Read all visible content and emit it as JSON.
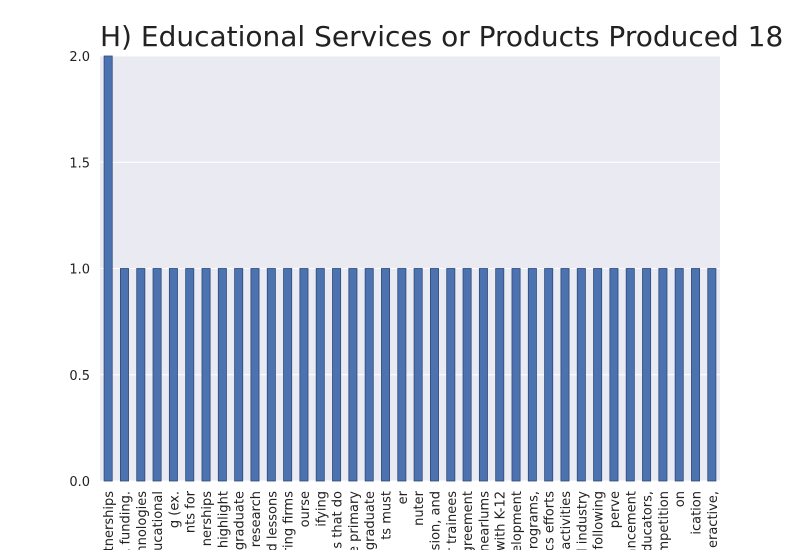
{
  "chart_data": {
    "type": "bar",
    "title": "H) Educational Services or Products Produced 18",
    "xlabel": "",
    "ylabel": "",
    "ylim": [
      0,
      2.0
    ],
    "yticks": [
      "0.0",
      "0.5",
      "1.0",
      "1.5",
      "2.0"
    ],
    "grid": true,
    "colors": {
      "bar": "#4c72b0",
      "bar_edge": "#2d4a7a",
      "background": "#eaeaf2",
      "grid": "#ffffff"
    },
    "categories": [
      "partnerships",
      "R funding.",
      "hnologies",
      "ducational",
      "g (ex.",
      "nts for",
      "nerships",
      "d highlight",
      "graduate",
      "research",
      "d lessons",
      "ring firms",
      "ourse",
      "ifying",
      "s that do",
      "e primary",
      "graduate",
      "ts must",
      "er",
      "nuter",
      "ision, and",
      "r trainees",
      "greement",
      "nearlums",
      "with K-12",
      "elopment",
      "programs,",
      "cs efforts",
      "d activities",
      "d industry",
      "following",
      "perve",
      "ancement",
      "educators,",
      "ompetition",
      "on",
      "ication",
      "eractive,"
    ],
    "values": [
      2,
      1,
      1,
      1,
      1,
      1,
      1,
      1,
      1,
      1,
      1,
      1,
      1,
      1,
      1,
      1,
      1,
      1,
      1,
      1,
      1,
      1,
      1,
      1,
      1,
      1,
      1,
      1,
      1,
      1,
      1,
      1,
      1,
      1,
      1,
      1,
      1,
      1
    ]
  }
}
